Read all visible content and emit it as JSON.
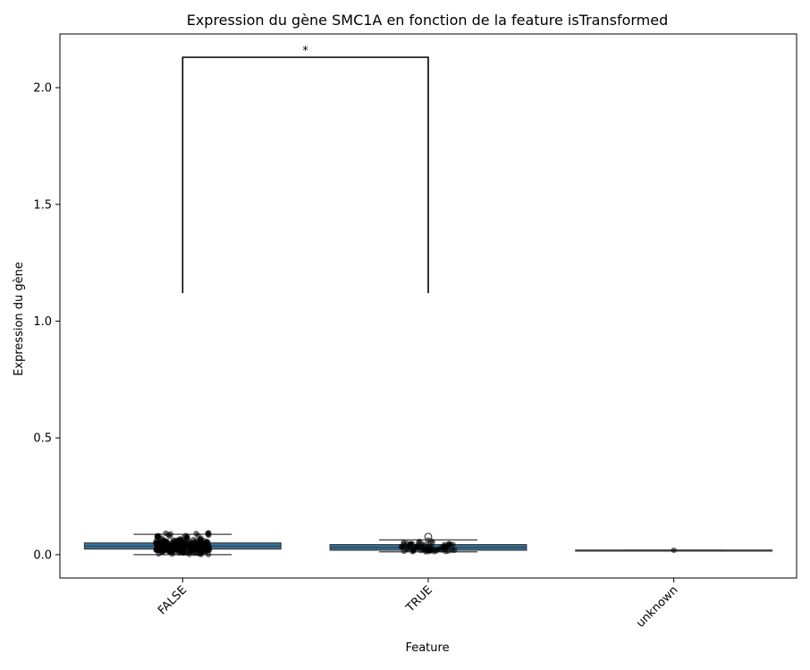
{
  "chart_data": {
    "type": "box",
    "title": "Expression du gène SMC1A en fonction de la feature isTransformed",
    "xlabel": "Feature",
    "ylabel": "Expression du gène",
    "categories": [
      "FALSE",
      "TRUE",
      "unknown"
    ],
    "ylim": [
      -0.1,
      2.23
    ],
    "yticks": [
      0.0,
      0.5,
      1.0,
      1.5,
      2.0
    ],
    "ytick_labels": [
      "0.0",
      "0.5",
      "1.0",
      "1.5",
      "2.0"
    ],
    "box_color": "#3274a1",
    "boxes": [
      {
        "category": "FALSE",
        "q1": 0.024,
        "median": 0.036,
        "q3": 0.05,
        "whisker_low": 0.0,
        "whisker_high": 0.087
      },
      {
        "category": "TRUE",
        "q1": 0.019,
        "median": 0.03,
        "q3": 0.043,
        "whisker_low": 0.012,
        "whisker_high": 0.063
      },
      {
        "category": "unknown",
        "q1": 0.019,
        "median": 0.019,
        "q3": 0.019,
        "whisker_low": 0.019,
        "whisker_high": 0.019
      }
    ],
    "outliers": [
      {
        "category": "TRUE",
        "value": 0.077
      }
    ],
    "significance": {
      "between": [
        "FALSE",
        "TRUE"
      ],
      "bracket_bottom": 1.12,
      "bracket_top": 2.13,
      "label": "*"
    }
  }
}
